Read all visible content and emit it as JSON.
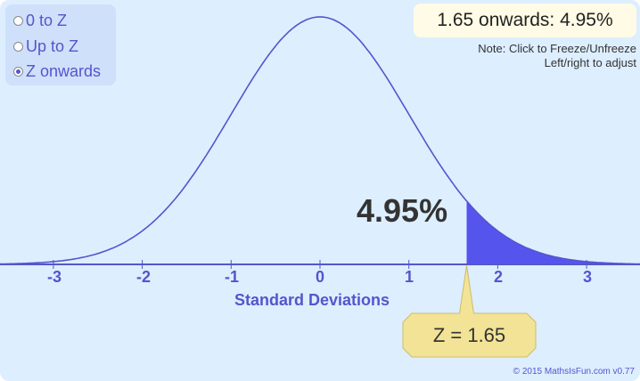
{
  "modes": {
    "options": [
      {
        "label": "0 to Z",
        "selected": false
      },
      {
        "label": "Up to Z",
        "selected": false
      },
      {
        "label": "Z onwards",
        "selected": true
      }
    ]
  },
  "result": {
    "text": "1.65 onwards: 4.95%"
  },
  "notes": {
    "line1": "Note: Click to Freeze/Unfreeze",
    "line2": "Left/right to adjust"
  },
  "graph": {
    "z_value": 1.65,
    "shaded_percent_label": "4.95%",
    "z_label": "Z = 1.65",
    "x_range": [
      -3.6,
      3.6
    ],
    "axis_ticks": [
      "-3",
      "-2",
      "-1",
      "0",
      "1",
      "2",
      "3"
    ],
    "axis_title": "Standard Deviations",
    "curve_color": "#5555cc",
    "shade_color": "#5555ee",
    "tooltip_color": "#f2e396"
  },
  "footer": {
    "copyright": "© 2015 MathsIsFun.com v0.77"
  }
}
